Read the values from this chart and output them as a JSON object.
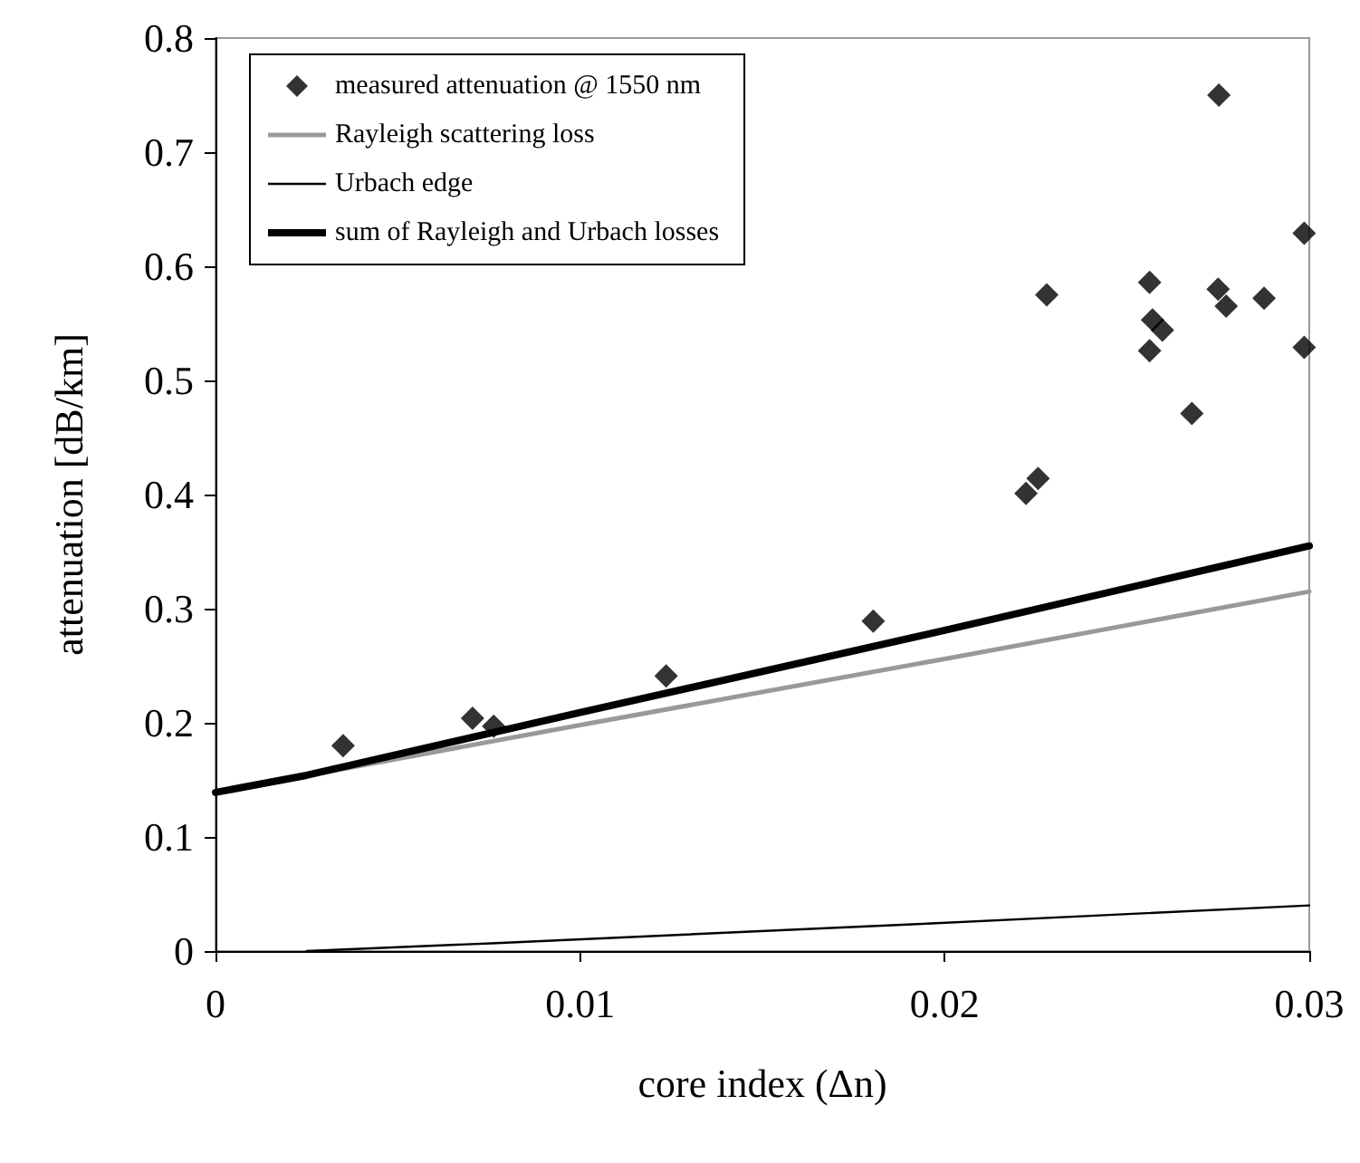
{
  "chart_data": {
    "type": "scatter",
    "xlabel": "core index (Δn)",
    "ylabel": "attenuation [dB/km]",
    "xlim": [
      0,
      0.03
    ],
    "xticks": [
      0,
      0.01,
      0.02,
      0.03
    ],
    "ylim": [
      0,
      0.8
    ],
    "yticks": [
      0,
      0.1,
      0.2,
      0.3,
      0.4,
      0.5,
      0.6,
      0.7,
      0.8
    ],
    "grid": false,
    "legend": "top left",
    "marker": "diamond",
    "series": [
      {
        "name": "measured attenuation @ 1550 nm",
        "color": "#000000",
        "x": [
          0.0035,
          0.00705,
          0.00763,
          0.01236,
          0.01804,
          0.02223,
          0.02256,
          0.0228,
          0.02562,
          0.0257,
          0.02597,
          0.02562,
          0.02678,
          0.0275,
          0.02752,
          0.02772,
          0.02876,
          0.02986,
          0.02986
        ],
        "values": [
          0.18,
          0.204,
          0.197,
          0.241,
          0.289,
          0.401,
          0.414,
          0.575,
          0.586,
          0.553,
          0.544,
          0.526,
          0.471,
          0.58,
          0.75,
          0.565,
          0.572,
          0.629,
          0.529
        ]
      },
      {
        "name": "Rayleigh scattering loss",
        "type": "line",
        "marker": "none",
        "color": "#999999",
        "x": [
          0,
          0.01,
          0.02,
          0.03
        ],
        "values": [
          0.139,
          0.198,
          0.256,
          0.315
        ]
      },
      {
        "name": "Urbach edge",
        "type": "line",
        "marker": "none",
        "color": "#000000",
        "x": [
          0.0025,
          0.0077,
          0.0195,
          0.03
        ],
        "values": [
          0,
          0.007,
          0.024,
          0.04
        ]
      },
      {
        "name": "sum of Rayleigh and Urbach losses",
        "type": "line",
        "marker": "none",
        "color": "#000000",
        "x": [
          0,
          0.0025,
          0.01,
          0.02,
          0.03
        ],
        "values": [
          0.139,
          0.154,
          0.209,
          0.281,
          0.355
        ]
      }
    ]
  }
}
